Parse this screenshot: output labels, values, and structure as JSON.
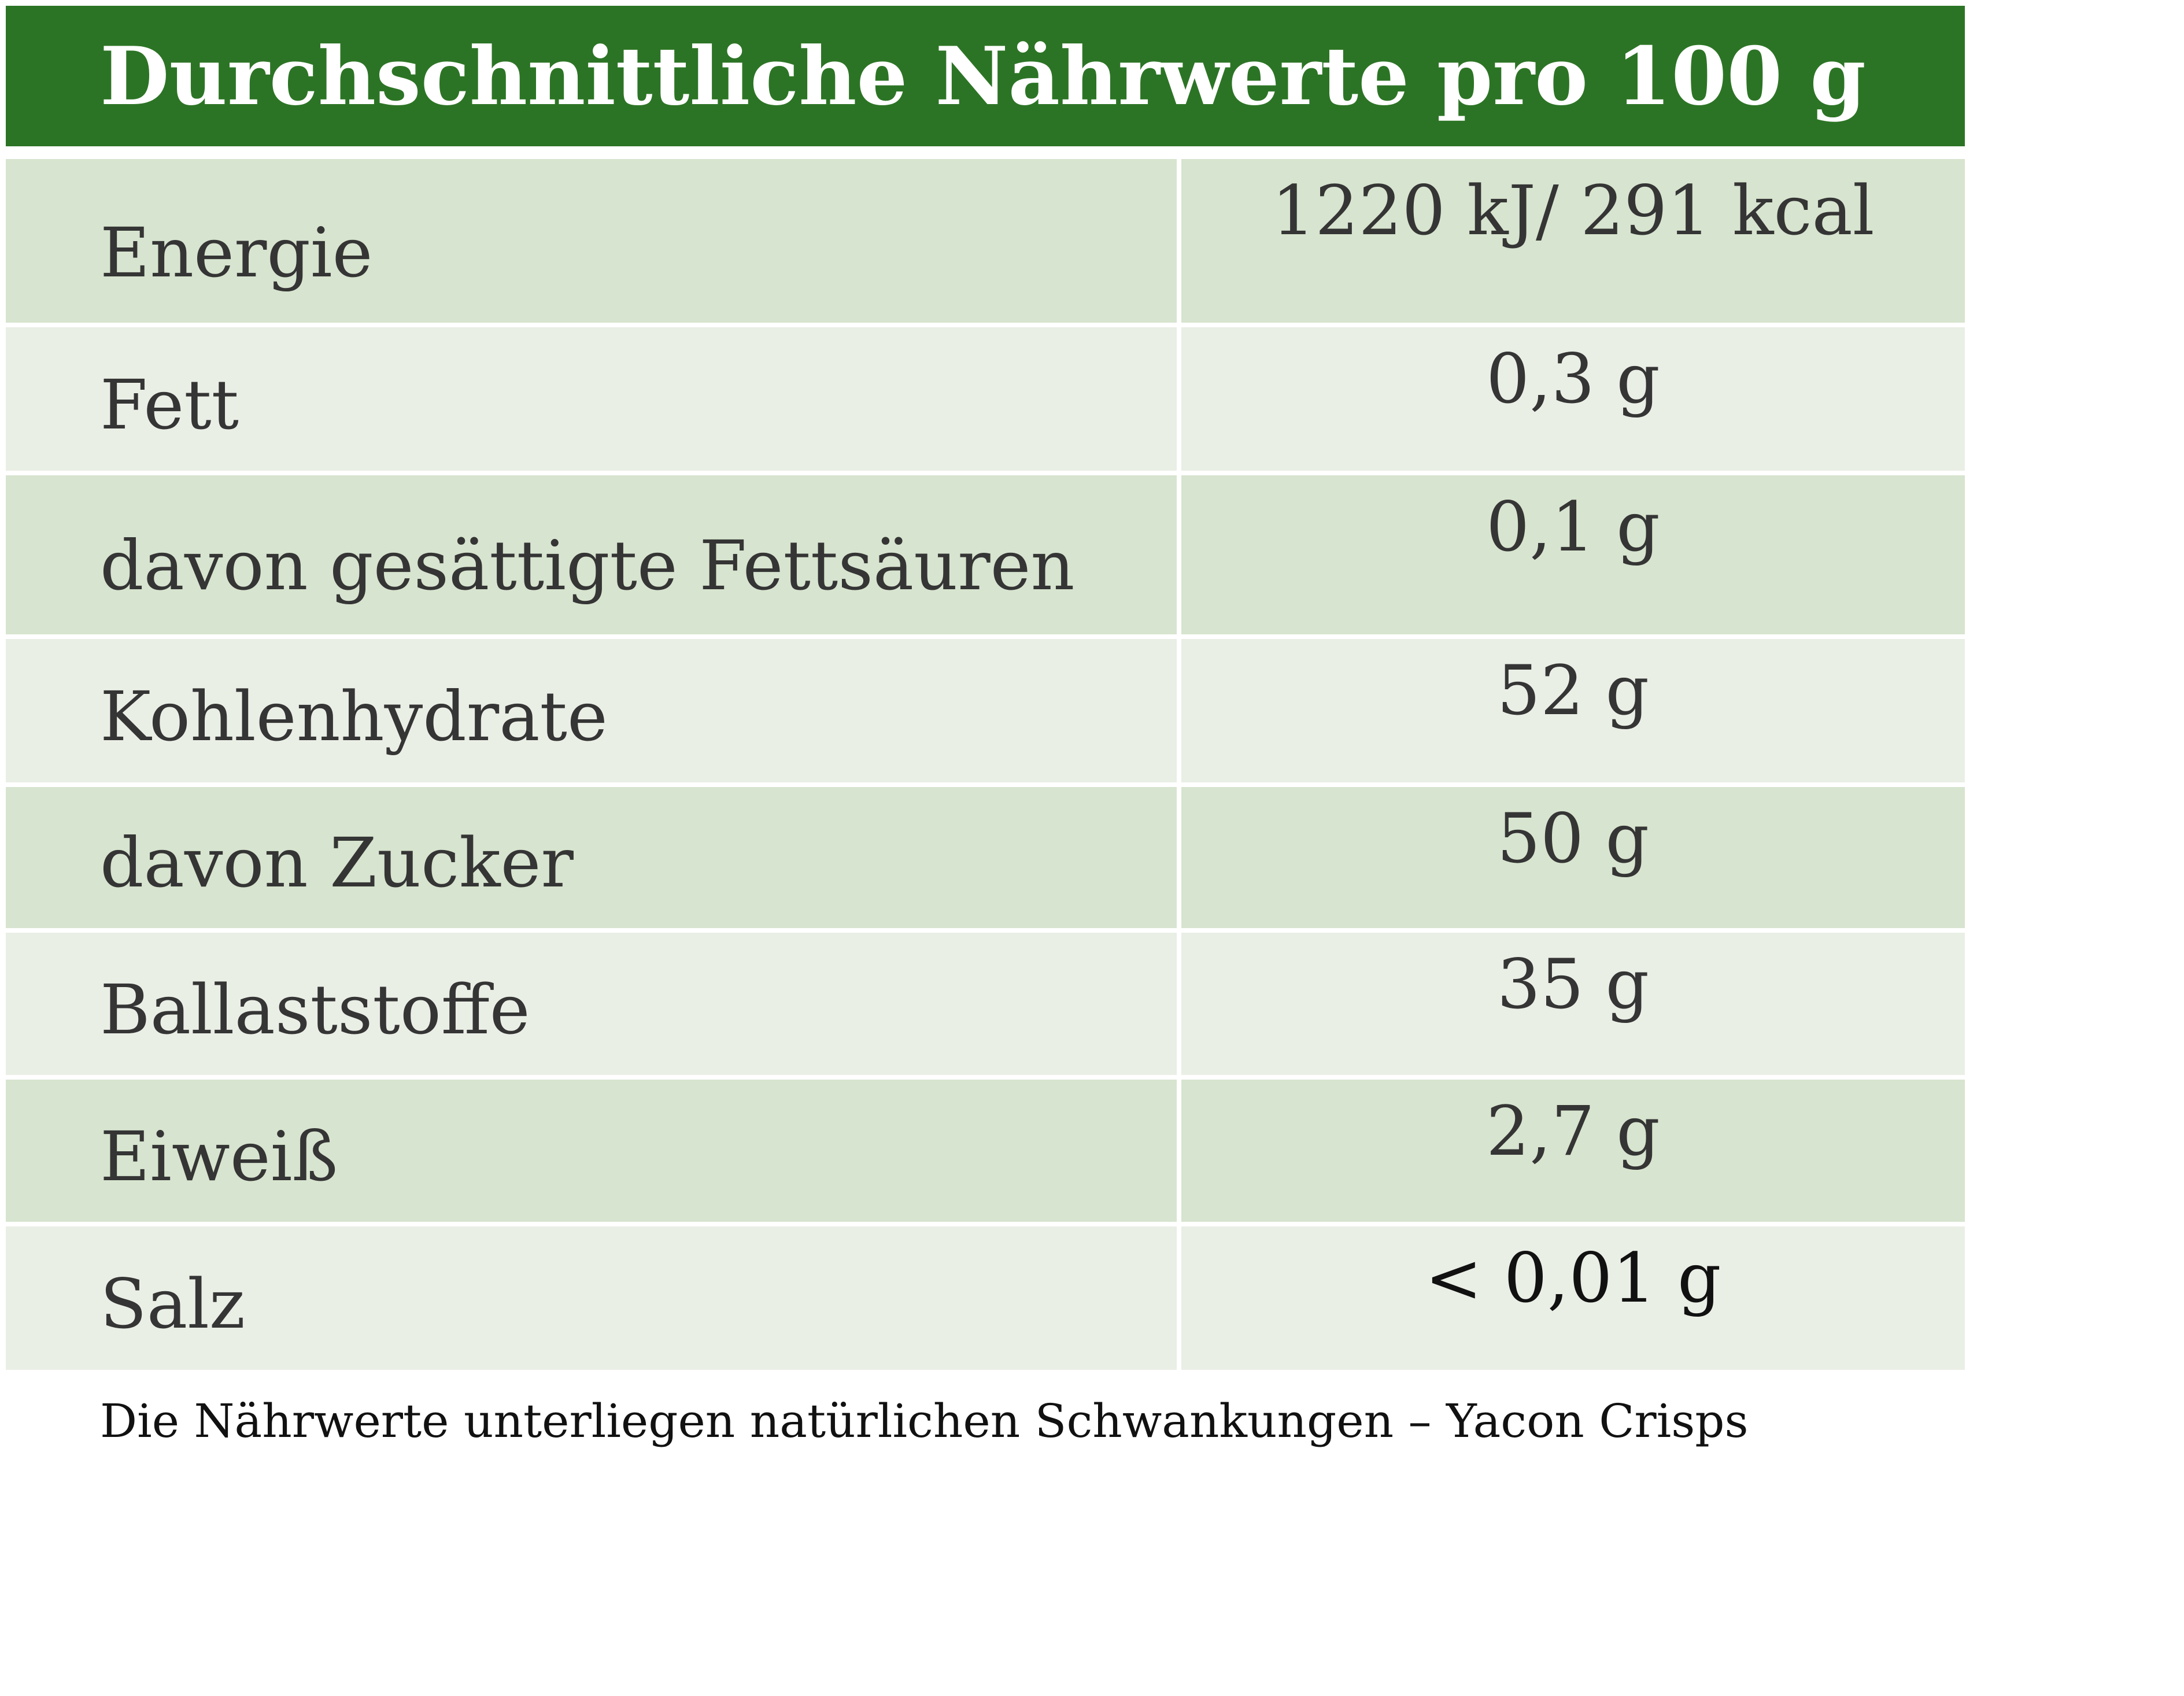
{
  "header": {
    "title": "Durchschnittliche Nährwerte pro 100 g"
  },
  "rows": [
    {
      "name": "Energie",
      "value": "1220 kJ/ 291 kcal"
    },
    {
      "name": "Fett",
      "value": "0,3 g"
    },
    {
      "name": "davon gesättigte Fettsäuren",
      "value": "0,1 g"
    },
    {
      "name": "Kohlenhydrate",
      "value": "52 g"
    },
    {
      "name": "davon Zucker",
      "value": "50 g"
    },
    {
      "name": "Ballaststoffe",
      "value": "35 g"
    },
    {
      "name": "Eiweiß",
      "value": "2,7 g"
    },
    {
      "name": "Salz",
      "value": "< 0,01 g"
    }
  ],
  "footnote": "Die Nährwerte unterliegen natürlichen Schwankungen – Yacon Crisps",
  "colors": {
    "header_bg": "#2c7425",
    "header_text": "#ffffff",
    "row_dark": "#d7e4cf",
    "row_light": "#eaefe6",
    "text": "#353535"
  }
}
